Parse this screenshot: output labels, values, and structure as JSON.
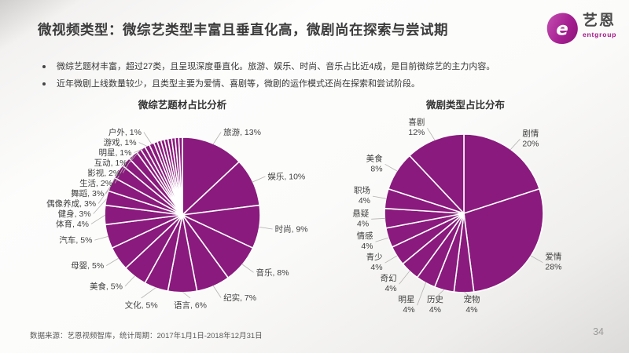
{
  "header": {
    "title": "微视频类型：微综艺类型丰富且垂直化高，微剧尚在探索与尝试期",
    "logo": {
      "name": "艺恩",
      "subtitle": "entgroup"
    }
  },
  "bullets": [
    "微综艺题材丰富，超过27类，且呈现深度垂直化。旅游、娱乐、时尚、音乐占比近4成，是目前微综艺的主力内容。",
    "近年微剧上线数量较少，且类型主要为爱情、喜剧等，微剧的运作模式还尚在探索和尝试阶段。"
  ],
  "footer": {
    "source": "数据来源：艺恩视频智库，统计周期：2017年1月1日-2018年12月31日",
    "page_number": "34"
  },
  "colors": {
    "pie": "#8A1A7D",
    "brand_magenta": "#A31286",
    "label_text": "#3F3F3F",
    "leader_line": "#B5B3B1"
  },
  "chart_data": [
    {
      "type": "pie",
      "title": "微综艺题材占比分析",
      "categories": [
        "旅游",
        "娱乐",
        "时尚",
        "音乐",
        "纪实",
        "语言",
        "文化",
        "美食",
        "母婴",
        "汽车",
        "体育",
        "健身",
        "偶像养成",
        "舞蹈",
        "生活",
        "影视",
        "互动",
        "明星",
        "游戏",
        "户外"
      ],
      "values": [
        13,
        10,
        9,
        8,
        7,
        6,
        5,
        5,
        5,
        5,
        4,
        3,
        3,
        3,
        2,
        2,
        1,
        1,
        1,
        1
      ],
      "other_slices": {
        "count": 8,
        "total_percent": 6
      },
      "label_style": "inline",
      "legend": "none",
      "color": "#8A1A7D"
    },
    {
      "type": "pie",
      "title": "微剧类型占比分布",
      "categories": [
        "剧情",
        "爱情",
        "宠物",
        "历史",
        "明星",
        "奇幻",
        "青少",
        "情感",
        "悬疑",
        "职场",
        "美食",
        "喜剧"
      ],
      "values": [
        20,
        28,
        4,
        4,
        4,
        4,
        4,
        4,
        4,
        4,
        8,
        12
      ],
      "label_style": "stacked",
      "legend": "none",
      "color": "#8A1A7D"
    }
  ]
}
